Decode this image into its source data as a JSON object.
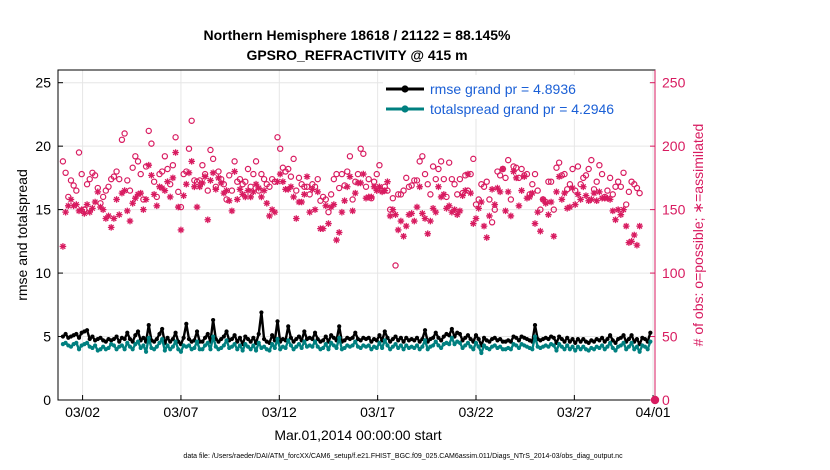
{
  "colors": {
    "rmse": "#000000",
    "totalspread": "#008080",
    "obs": "#d81b60",
    "legend_text": "#1a5fd6",
    "grid": "#e6e6e6"
  },
  "chart_data": {
    "type": "line",
    "title": "Northern Hemisphere 18618 / 21122 = 88.145%",
    "subtitle": "GPSRO_REFRACTIVITY @ 415 m",
    "xlabel": "Mar.01,2014 00:00:00 start",
    "ylabel": "rmse and totalspread",
    "y2label": "# of obs: o=possible; ∗=assimilated",
    "xlim": [
      0.75,
      31.1
    ],
    "ylim": [
      0,
      26
    ],
    "y2lim": [
      0,
      260
    ],
    "yticks": [
      0,
      5,
      10,
      15,
      20,
      25
    ],
    "y2ticks": [
      0,
      50,
      100,
      150,
      200,
      250
    ],
    "xticks": [
      {
        "x": 2,
        "label": "03/02"
      },
      {
        "x": 7,
        "label": "03/07"
      },
      {
        "x": 12,
        "label": "03/12"
      },
      {
        "x": 17,
        "label": "03/17"
      },
      {
        "x": 22,
        "label": "03/22"
      },
      {
        "x": 27,
        "label": "03/27"
      },
      {
        "x": 31,
        "label": "04/01"
      }
    ],
    "grid": true,
    "legend_position": "top-right",
    "series": [
      {
        "name": "rmse grand pr = 4.8936",
        "axis": "left",
        "marker": "circle-filled",
        "values": [
          5.0,
          5.2,
          4.9,
          5.0,
          5.1,
          5.2,
          4.9,
          5.3,
          5.4,
          5.5,
          4.8,
          5.0,
          4.7,
          4.8,
          4.9,
          4.7,
          4.6,
          4.8,
          4.7,
          4.8,
          5.0,
          4.6,
          4.9,
          4.8,
          5.3,
          4.8,
          4.6,
          5.1,
          5.4,
          4.7,
          4.9,
          4.6,
          5.9,
          4.7,
          4.6,
          4.8,
          5.2,
          5.6,
          4.5,
          4.9,
          4.6,
          4.8,
          5.3,
          4.6,
          4.4,
          4.9,
          6.0,
          4.8,
          4.6,
          4.7,
          5.4,
          4.6,
          4.6,
          4.9,
          5.2,
          4.6,
          6.3,
          4.8,
          4.6,
          4.8,
          5.0,
          5.4,
          4.7,
          4.8,
          5.1,
          4.6,
          4.9,
          4.4,
          5.0,
          4.8,
          4.6,
          4.9,
          4.5,
          5.2,
          6.9,
          4.8,
          4.6,
          4.5,
          5.1,
          4.7,
          6.2,
          4.6,
          4.8,
          4.7,
          5.8,
          4.9,
          4.6,
          4.8,
          5.0,
          4.7,
          5.4,
          4.8,
          4.9,
          4.8,
          5.3,
          4.8,
          4.6,
          4.7,
          5.0,
          4.6,
          5.1,
          4.9,
          4.7,
          5.8,
          4.6,
          4.7,
          4.9,
          4.8,
          4.9,
          5.3,
          4.8,
          4.7,
          4.9,
          4.8,
          4.9,
          4.6,
          4.8,
          4.7,
          5.1,
          4.7,
          5.4,
          4.9,
          4.6,
          4.8,
          5.0,
          4.7,
          4.9,
          4.6,
          4.9,
          4.7,
          4.8,
          4.7,
          4.9,
          4.6,
          4.8,
          5.5,
          4.6,
          4.8,
          4.9,
          5.3,
          4.9,
          4.7,
          5.0,
          5.2,
          5.1,
          5.6,
          5.0,
          5.3,
          5.2,
          4.7,
          4.9,
          5.1,
          4.8,
          4.6,
          5.1,
          4.8,
          4.3,
          4.9,
          4.7,
          4.6,
          4.8,
          4.9,
          4.7,
          4.8,
          4.6,
          4.6,
          4.7,
          4.6,
          5.0,
          4.9,
          4.7,
          5.0,
          4.9,
          4.8,
          4.7,
          4.6,
          5.9,
          4.8,
          4.7,
          4.8,
          4.9,
          4.8,
          5.0,
          4.9,
          4.5,
          5.0,
          4.8,
          4.6,
          4.9,
          4.6,
          4.8,
          4.5,
          4.8,
          4.6,
          4.8,
          4.6,
          4.5,
          4.7,
          4.6,
          4.8,
          4.7,
          4.9,
          4.6,
          4.8,
          5.1,
          4.7,
          4.5,
          4.8,
          4.9,
          5.1,
          4.6,
          4.8,
          5.1,
          4.6,
          4.8,
          4.4,
          4.9,
          4.8,
          4.6,
          5.3
        ]
      },
      {
        "name": "totalspread grand pr = 4.2946",
        "axis": "left",
        "marker": "circle-filled",
        "values": [
          4.4,
          4.5,
          4.3,
          4.2,
          4.4,
          4.5,
          4.0,
          4.3,
          4.4,
          4.5,
          4.2,
          4.1,
          4.3,
          3.9,
          4.0,
          4.2,
          4.0,
          4.1,
          4.4,
          4.3,
          4.0,
          4.2,
          4.3,
          4.0,
          4.5,
          4.2,
          4.0,
          4.4,
          4.6,
          4.1,
          4.3,
          3.8,
          4.9,
          4.1,
          4.0,
          4.2,
          4.5,
          4.8,
          3.9,
          4.3,
          4.0,
          4.2,
          4.6,
          4.0,
          3.8,
          4.3,
          4.2,
          4.3,
          4.0,
          4.1,
          4.6,
          4.0,
          4.0,
          4.3,
          4.5,
          4.0,
          5.0,
          4.2,
          4.0,
          4.1,
          4.3,
          4.7,
          4.1,
          4.2,
          4.4,
          4.0,
          4.3,
          3.9,
          4.4,
          4.2,
          4.0,
          4.3,
          3.9,
          4.5,
          4.1,
          4.2,
          4.0,
          3.9,
          4.4,
          4.1,
          4.8,
          4.0,
          4.2,
          4.1,
          4.7,
          4.3,
          4.0,
          4.2,
          4.4,
          4.1,
          4.6,
          4.2,
          4.3,
          4.2,
          4.6,
          4.2,
          4.0,
          4.1,
          4.4,
          4.0,
          4.5,
          4.3,
          4.1,
          4.9,
          4.0,
          4.1,
          4.3,
          4.2,
          4.3,
          4.6,
          4.2,
          4.1,
          4.3,
          4.2,
          4.3,
          4.0,
          4.2,
          4.1,
          4.5,
          4.1,
          4.7,
          4.3,
          4.0,
          4.2,
          4.4,
          4.1,
          4.3,
          4.0,
          4.3,
          4.1,
          4.2,
          4.1,
          4.3,
          4.0,
          4.2,
          4.7,
          4.0,
          4.2,
          4.3,
          4.6,
          4.3,
          4.1,
          4.4,
          4.5,
          4.4,
          4.9,
          4.4,
          4.6,
          4.5,
          4.1,
          4.3,
          4.5,
          4.2,
          4.0,
          4.5,
          4.2,
          3.7,
          4.3,
          4.1,
          4.0,
          4.2,
          4.3,
          4.1,
          4.2,
          4.0,
          4.0,
          4.1,
          4.0,
          4.4,
          4.3,
          4.1,
          4.4,
          4.3,
          4.2,
          4.1,
          4.0,
          5.0,
          4.2,
          4.1,
          4.2,
          4.3,
          4.2,
          4.4,
          4.3,
          3.9,
          4.4,
          4.2,
          4.0,
          4.3,
          4.0,
          4.2,
          3.9,
          4.2,
          4.0,
          4.2,
          4.0,
          3.9,
          4.1,
          4.0,
          4.2,
          4.1,
          4.3,
          4.0,
          4.2,
          4.5,
          4.1,
          3.9,
          4.2,
          4.3,
          4.5,
          4.0,
          4.2,
          4.5,
          4.0,
          4.2,
          3.8,
          4.3,
          4.2,
          4.0,
          4.6
        ]
      },
      {
        "name": "possible",
        "axis": "right",
        "marker": "circle-open",
        "values": [
          188,
          179,
          160,
          173,
          169,
          165,
          195,
          178,
          150,
          170,
          174,
          179,
          177,
          167,
          155,
          160,
          165,
          168,
          174,
          176,
          180,
          174,
          205,
          210,
          173,
          165,
          183,
          192,
          188,
          178,
          158,
          184,
          212,
          202,
          172,
          160,
          178,
          180,
          192,
          182,
          170,
          185,
          207,
          164,
          152,
          178,
          180,
          198,
          220,
          173,
          172,
          173,
          185,
          178,
          165,
          197,
          190,
          168,
          180,
          174,
          170,
          158,
          177,
          165,
          188,
          172,
          174,
          170,
          172,
          182,
          168,
          178,
          188,
          165,
          178,
          174,
          170,
          168,
          174,
          172,
          207,
          198,
          183,
          180,
          182,
          176,
          190,
          165,
          175,
          170,
          168,
          168,
          162,
          170,
          168,
          174,
          157,
          160,
          158,
          148,
          162,
          174,
          178,
          167,
          178,
          169,
          180,
          192,
          158,
          172,
          178,
          198,
          194,
          168,
          174,
          159,
          172,
          178,
          185,
          165,
          168,
          165,
          150,
          159,
          106,
          162,
          162,
          165,
          175,
          168,
          169,
          173,
          173,
          188,
          192,
          178,
          170,
          162,
          184,
          174,
          182,
          188,
          174,
          160,
          187,
          174,
          170,
          162,
          174,
          163,
          177,
          165,
          178,
          190,
          154,
          158,
          170,
          168,
          172,
          158,
          140,
          150,
          180,
          177,
          182,
          175,
          189,
          158,
          184,
          183,
          175,
          182,
          177,
          178,
          162,
          170,
          178,
          165,
          150,
          158,
          156,
          172,
          172,
          150,
          183,
          187,
          177,
          178,
          166,
          170,
          182,
          165,
          184,
          170,
          175,
          177,
          182,
          189,
          166,
          172,
          185,
          178,
          160,
          165,
          175,
          162,
          168,
          172,
          168,
          179,
          154,
          164,
          172,
          170,
          167,
          163
        ]
      },
      {
        "name": "assimilated",
        "axis": "right",
        "marker": "asterisk",
        "values": [
          121,
          148,
          153,
          158,
          153,
          154,
          149,
          150,
          147,
          154,
          148,
          151,
          156,
          164,
          152,
          150,
          143,
          145,
          136,
          143,
          158,
          146,
          163,
          165,
          149,
          141,
          155,
          159,
          162,
          163,
          150,
          158,
          185,
          177,
          162,
          153,
          168,
          167,
          165,
          172,
          160,
          175,
          195,
          152,
          134,
          161,
          170,
          179,
          188,
          168,
          152,
          168,
          171,
          176,
          142,
          173,
          179,
          166,
          175,
          171,
          163,
          165,
          157,
          149,
          180,
          158,
          166,
          162,
          160,
          165,
          160,
          164,
          170,
          167,
          160,
          165,
          155,
          145,
          150,
          148,
          172,
          178,
          172,
          166,
          166,
          168,
          160,
          143,
          156,
          156,
          162,
          176,
          148,
          166,
          150,
          164,
          135,
          135,
          153,
          139,
          152,
          154,
          126,
          132,
          148,
          157,
          168,
          176,
          149,
          163,
          171,
          171,
          178,
          159,
          160,
          160,
          168,
          165,
          168,
          164,
          165,
          172,
          145,
          150,
          146,
          134,
          141,
          129,
          137,
          146,
          147,
          141,
          152,
          168,
          147,
          143,
          131,
          141,
          151,
          148,
          168,
          160,
          162,
          151,
          153,
          148,
          150,
          146,
          149,
          161,
          165,
          178,
          163,
          139,
          143,
          151,
          156,
          137,
          128,
          145,
          166,
          154,
          167,
          164,
          182,
          149,
          164,
          145,
          180,
          175,
          153,
          165,
          176,
          159,
          160,
          163,
          139,
          148,
          133,
          158,
          155,
          146,
          156,
          129,
          164,
          176,
          158,
          163,
          151,
          152,
          167,
          154,
          162,
          158,
          168,
          161,
          157,
          158,
          163,
          157,
          164,
          159,
          159,
          159,
          158,
          149,
          142,
          150,
          146,
          150,
          137,
          124,
          125,
          130,
          122,
          137
        ]
      }
    ]
  },
  "footer_text": "data file: /Users/raeder/DAI/ATM_forcXX/CAM6_setup/f.e21.FHIST_BGC.f09_025.CAM6assim.011/Diags_NTrS_2014-03/obs_diag_output.nc"
}
